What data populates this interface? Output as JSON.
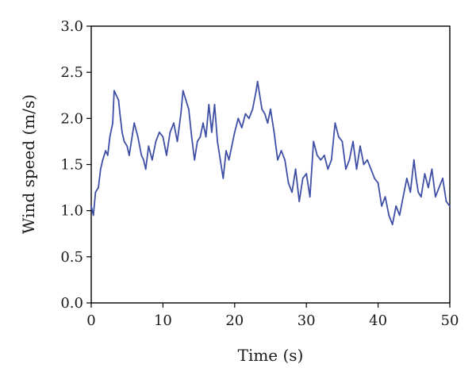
{
  "chart_data": {
    "type": "line",
    "title": "",
    "xlabel": "Time (s)",
    "ylabel": "Wind speed (m/s)",
    "xlim": [
      0,
      50
    ],
    "ylim": [
      0.0,
      3.0
    ],
    "x_ticks": [
      "0",
      "10",
      "20",
      "30",
      "40",
      "50"
    ],
    "y_ticks": [
      "0.0",
      "0.5",
      "1.0",
      "1.5",
      "2.0",
      "2.5",
      "3.0"
    ],
    "grid": false,
    "legend": "none",
    "series_color": "#3f4fa6",
    "series": [
      {
        "x": [
          0,
          0.3,
          0.6,
          1.0,
          1.3,
          1.6,
          2.0,
          2.3,
          2.6,
          3.0,
          3.2,
          3.5,
          3.8,
          4.0,
          4.3,
          4.6,
          5.0,
          5.3,
          5.6,
          6.0,
          6.5,
          7.0,
          7.3,
          7.6,
          8.0,
          8.5,
          9.0,
          9.5,
          10.0,
          10.5,
          11.0,
          11.5,
          12.0,
          12.5,
          12.8,
          13.2,
          13.6,
          14.0,
          14.4,
          14.8,
          15.2,
          15.6,
          16.0,
          16.4,
          16.8,
          17.2,
          17.6,
          18.0,
          18.4,
          18.8,
          19.2,
          19.6,
          20.0,
          20.5,
          21.0,
          21.5,
          22.0,
          22.5,
          23.0,
          23.2,
          23.5,
          23.8,
          24.2,
          24.6,
          25.0,
          25.5,
          26.0,
          26.5,
          27.0,
          27.5,
          28.0,
          28.5,
          29.0,
          29.5,
          30.0,
          30.5,
          31.0,
          31.5,
          32.0,
          32.5,
          33.0,
          33.5,
          34.0,
          34.5,
          35.0,
          35.5,
          36.0,
          36.5,
          37.0,
          37.5,
          38.0,
          38.5,
          39.0,
          39.5,
          40.0,
          40.5,
          41.0,
          41.5,
          42.0,
          42.5,
          43.0,
          43.5,
          44.0,
          44.5,
          45.0,
          45.3,
          45.6,
          46.0,
          46.5,
          47.0,
          47.5,
          48.0,
          48.5,
          49.0,
          49.5,
          50.0
        ],
        "values": [
          1.05,
          0.95,
          1.2,
          1.25,
          1.45,
          1.55,
          1.65,
          1.6,
          1.8,
          1.95,
          2.3,
          2.25,
          2.2,
          2.05,
          1.85,
          1.75,
          1.7,
          1.6,
          1.75,
          1.95,
          1.8,
          1.6,
          1.55,
          1.45,
          1.7,
          1.55,
          1.75,
          1.85,
          1.8,
          1.6,
          1.85,
          1.95,
          1.75,
          2.05,
          2.3,
          2.2,
          2.1,
          1.8,
          1.55,
          1.75,
          1.8,
          1.95,
          1.8,
          2.15,
          1.85,
          2.15,
          1.75,
          1.55,
          1.35,
          1.65,
          1.55,
          1.7,
          1.85,
          2.0,
          1.9,
          2.05,
          2.0,
          2.1,
          2.3,
          2.4,
          2.25,
          2.1,
          2.05,
          1.95,
          2.1,
          1.85,
          1.55,
          1.65,
          1.55,
          1.3,
          1.2,
          1.45,
          1.1,
          1.35,
          1.4,
          1.15,
          1.75,
          1.6,
          1.55,
          1.6,
          1.45,
          1.55,
          1.95,
          1.8,
          1.75,
          1.45,
          1.55,
          1.75,
          1.45,
          1.7,
          1.5,
          1.55,
          1.45,
          1.35,
          1.3,
          1.05,
          1.15,
          0.95,
          0.85,
          1.05,
          0.95,
          1.15,
          1.35,
          1.2,
          1.55,
          1.35,
          1.2,
          1.15,
          1.4,
          1.25,
          1.45,
          1.15,
          1.25,
          1.35,
          1.1,
          1.05
        ]
      }
    ]
  }
}
